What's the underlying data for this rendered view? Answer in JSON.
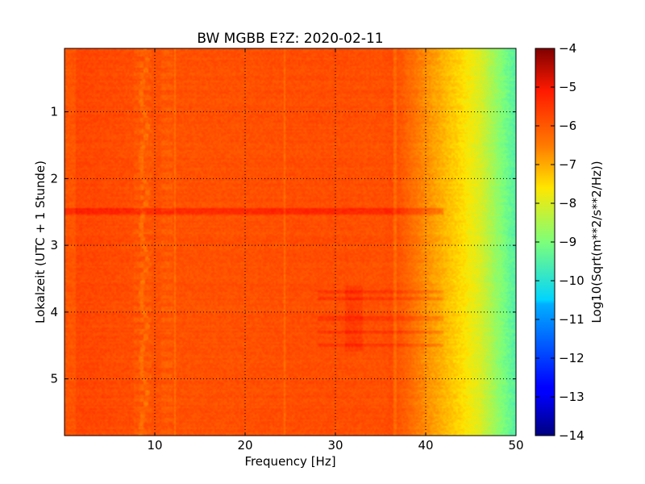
{
  "chart_data": {
    "type": "heatmap",
    "title": "BW MGBB E?Z: 2020-02-11",
    "xlabel": "Frequency [Hz]",
    "ylabel": "Lokalzeit (UTC + 1 Stunde)",
    "xlim": [
      0,
      50
    ],
    "ylim": [
      5.85,
      0.05
    ],
    "y_axis_inverted": true,
    "x_ticks": [
      10,
      20,
      30,
      40,
      50
    ],
    "x_tick_labels": [
      "10",
      "20",
      "30",
      "40",
      "50"
    ],
    "y_ticks": [
      1,
      2,
      3,
      4,
      5
    ],
    "y_tick_labels": [
      "1",
      "2",
      "3",
      "4",
      "5"
    ],
    "grid": true,
    "grid_style": "dotted",
    "colormap": "jet",
    "colorbar": {
      "label": "Log10(Sqrt(m**2/s**2/Hz))",
      "range": [
        -14,
        -4
      ],
      "ticks": [
        -4,
        -5,
        -6,
        -7,
        -8,
        -9,
        -10,
        -11,
        -12,
        -13,
        -14
      ],
      "tick_labels": [
        "−4",
        "−5",
        "−6",
        "−7",
        "−8",
        "−9",
        "−10",
        "−11",
        "−12",
        "−13",
        "−14"
      ]
    },
    "spectral_profile": {
      "frequency_hz": [
        0,
        5,
        10,
        15,
        20,
        25,
        30,
        35,
        36.5,
        38,
        40,
        42,
        44,
        46,
        48,
        50
      ],
      "value_log10": [
        -5.7,
        -5.8,
        -5.9,
        -5.9,
        -5.9,
        -5.85,
        -5.85,
        -5.9,
        -5.8,
        -6.2,
        -6.7,
        -7.1,
        -7.5,
        -8.0,
        -8.8,
        -9.5
      ]
    },
    "vertical_lines_hz": [
      12.2,
      24.4,
      36.6
    ],
    "tremor_line": {
      "frequency_hz_approx": 8.8,
      "dashed_bursts_hz": [
        8.2,
        9.0,
        11.3
      ]
    },
    "strong_band_hour": 2.5,
    "active_band_hours": [
      3.7,
      3.8,
      4.1,
      4.3,
      4.5
    ]
  },
  "colors": {
    "jet_stops": [
      "#00007f",
      "#0000ff",
      "#007fff",
      "#00ffff",
      "#7fff7f",
      "#ffff00",
      "#ff7f00",
      "#ff0000",
      "#7f0000"
    ]
  }
}
